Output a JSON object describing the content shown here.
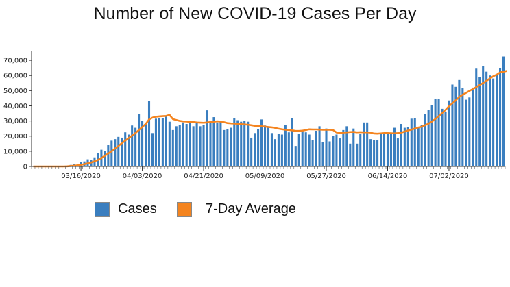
{
  "chart_data": {
    "type": "bar",
    "title": "Number of New COVID-19 Cases Per Day",
    "xlabel": "",
    "ylabel": "",
    "ylim": [
      0,
      75000
    ],
    "y_ticks": [
      "0",
      "10,000",
      "20,000",
      "30,000",
      "40,000",
      "50,000",
      "60,000",
      "70,000"
    ],
    "x_tick_labels": [
      {
        "label": "03/16/2020",
        "day_index": 14
      },
      {
        "label": "04/03/2020",
        "day_index": 32
      },
      {
        "label": "04/21/2020",
        "day_index": 50
      },
      {
        "label": "05/09/2020",
        "day_index": 68
      },
      {
        "label": "05/27/2020",
        "day_index": 86
      },
      {
        "label": "06/14/2020",
        "day_index": 104
      },
      {
        "label": "07/02/2020",
        "day_index": 122
      }
    ],
    "start_date": "03/02/2020",
    "series": [
      {
        "name": "Cases",
        "color": "#3a7ebf",
        "kind": "bar",
        "values": [
          0,
          0,
          0,
          0,
          0,
          0,
          0,
          0,
          0,
          0,
          500,
          1000,
          1500,
          1200,
          2800,
          3300,
          4700,
          4500,
          6000,
          8800,
          11000,
          10000,
          14000,
          17000,
          18000,
          19500,
          19000,
          22500,
          21000,
          27000,
          25500,
          34500,
          30000,
          28000,
          43000,
          22000,
          31500,
          32000,
          32000,
          33000,
          29500,
          24000,
          26500,
          27500,
          29000,
          28000,
          30000,
          26500,
          29000,
          26500,
          27500,
          37000,
          30000,
          32500,
          29000,
          30000,
          24000,
          24500,
          25500,
          32000,
          30500,
          29500,
          30000,
          29500,
          19000,
          22000,
          24500,
          31000,
          27000,
          26000,
          22000,
          18000,
          21500,
          21000,
          27500,
          22500,
          32000,
          13500,
          21500,
          24000,
          22500,
          21000,
          17500,
          23500,
          26500,
          16000,
          25000,
          16500,
          20000,
          21000,
          18500,
          24000,
          26500,
          15000,
          25000,
          15000,
          21500,
          29000,
          29000,
          18000,
          17500,
          17500,
          21500,
          21500,
          21500,
          21500,
          25500,
          18500,
          28000,
          25500,
          26000,
          31500,
          32000,
          26000,
          27500,
          34500,
          37500,
          40500,
          44500,
          44500,
          38000,
          36000,
          43500,
          54000,
          52500,
          57000,
          51500,
          44000,
          45500,
          52000,
          64500,
          59000,
          66000,
          62500,
          60000,
          58000,
          60500,
          65000,
          72500
        ]
      },
      {
        "name": "7-Day Average",
        "color": "#f4841f",
        "kind": "line",
        "values": [
          0,
          0,
          0,
          0,
          0,
          0,
          0,
          0,
          0,
          0,
          100,
          300,
          500,
          700,
          1000,
          1500,
          2000,
          2600,
          3400,
          4300,
          5500,
          7000,
          8500,
          10000,
          11800,
          13500,
          15300,
          17000,
          18700,
          20300,
          22000,
          24000,
          26000,
          28000,
          31000,
          32200,
          32800,
          33000,
          33200,
          33300,
          34000,
          31200,
          30600,
          30000,
          29700,
          29600,
          29400,
          29300,
          29000,
          28900,
          28800,
          29000,
          29300,
          29500,
          29800,
          29600,
          29200,
          28600,
          28400,
          28300,
          28100,
          27900,
          27700,
          27500,
          27200,
          26800,
          26600,
          26500,
          26300,
          26000,
          25800,
          25400,
          24900,
          24500,
          24200,
          24000,
          23800,
          23400,
          23400,
          23600,
          24000,
          24500,
          24400,
          24400,
          24300,
          24200,
          24200,
          24200,
          24000,
          22400,
          22200,
          22300,
          22500,
          22700,
          22800,
          22500,
          22600,
          22500,
          22500,
          22300,
          21700,
          21600,
          21800,
          22000,
          22000,
          21900,
          21800,
          22000,
          22300,
          23000,
          23700,
          24300,
          25000,
          25700,
          26200,
          27200,
          28200,
          29600,
          31300,
          33200,
          35200,
          37300,
          39700,
          41600,
          43600,
          45800,
          47300,
          48500,
          49800,
          51000,
          52300,
          53700,
          55000,
          56500,
          58000,
          59500,
          60500,
          62000,
          62500,
          63000
        ]
      }
    ],
    "legend": [
      {
        "label": "Cases",
        "color": "#3a7ebf"
      },
      {
        "label": "7-Day Average",
        "color": "#f4841f"
      }
    ],
    "legend_position": "bottom-left",
    "grid": false
  }
}
